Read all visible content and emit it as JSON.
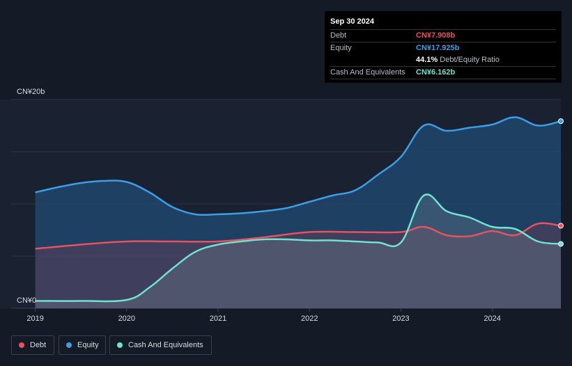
{
  "tooltip": {
    "date": "Sep 30 2024",
    "rows": [
      {
        "label": "Debt",
        "value": "CN¥7.908b",
        "color": "#e8525f"
      },
      {
        "label": "Equity",
        "value": "CN¥17.925b",
        "color": "#3d9ee8"
      },
      {
        "label": "",
        "value": "44.1%",
        "suffix": "Debt/Equity Ratio",
        "color": "#ffffff"
      },
      {
        "label": "Cash And Equivalents",
        "value": "CN¥6.162b",
        "color": "#6fe3d0"
      }
    ]
  },
  "legend": [
    {
      "label": "Debt",
      "color": "#e8525f"
    },
    {
      "label": "Equity",
      "color": "#3d9ee8"
    },
    {
      "label": "Cash And Equivalents",
      "color": "#6fe3d0"
    }
  ],
  "chart_data": {
    "type": "area",
    "y_top_label": "CN¥20b",
    "y_bottom_label": "CN¥0",
    "ylim": [
      0,
      20
    ],
    "xlim": [
      2018.98,
      2024.75
    ],
    "x_ticks": [
      "2019",
      "2020",
      "2021",
      "2022",
      "2023",
      "2024"
    ],
    "x_tick_values": [
      2019,
      2020,
      2021,
      2022,
      2023,
      2024
    ],
    "grid": true,
    "series": [
      {
        "name": "Equity",
        "color": "#3d9ee8",
        "x": [
          2019.0,
          2019.25,
          2019.5,
          2019.75,
          2020.0,
          2020.25,
          2020.5,
          2020.75,
          2021.0,
          2021.25,
          2021.5,
          2021.75,
          2022.0,
          2022.25,
          2022.5,
          2022.75,
          2023.0,
          2023.25,
          2023.5,
          2023.75,
          2024.0,
          2024.25,
          2024.5,
          2024.75
        ],
        "y": [
          11.1,
          11.6,
          12.0,
          12.2,
          12.1,
          11.1,
          9.7,
          9.0,
          9.0,
          9.1,
          9.3,
          9.6,
          10.2,
          10.8,
          11.3,
          12.8,
          14.5,
          17.5,
          17.0,
          17.3,
          17.6,
          18.3,
          17.5,
          17.925
        ]
      },
      {
        "name": "Debt",
        "color": "#e8525f",
        "x": [
          2019.0,
          2019.5,
          2020.0,
          2020.5,
          2021.0,
          2021.5,
          2022.0,
          2022.5,
          2023.0,
          2023.25,
          2023.5,
          2023.75,
          2024.0,
          2024.25,
          2024.5,
          2024.75
        ],
        "y": [
          5.7,
          6.1,
          6.4,
          6.4,
          6.4,
          6.8,
          7.3,
          7.3,
          7.3,
          7.8,
          7.0,
          6.9,
          7.4,
          7.0,
          8.1,
          7.908
        ]
      },
      {
        "name": "Cash And Equivalents",
        "color": "#6fe3d0",
        "x": [
          2019.0,
          2019.5,
          2020.0,
          2020.25,
          2020.5,
          2020.75,
          2021.0,
          2021.25,
          2021.5,
          2021.75,
          2022.0,
          2022.25,
          2022.5,
          2022.75,
          2023.0,
          2023.25,
          2023.5,
          2023.75,
          2024.0,
          2024.25,
          2024.5,
          2024.75
        ],
        "y": [
          0.7,
          0.7,
          0.8,
          2.0,
          3.8,
          5.4,
          6.1,
          6.4,
          6.6,
          6.6,
          6.5,
          6.5,
          6.4,
          6.3,
          6.3,
          10.8,
          9.3,
          8.7,
          7.8,
          7.6,
          6.4,
          6.162
        ]
      }
    ]
  }
}
